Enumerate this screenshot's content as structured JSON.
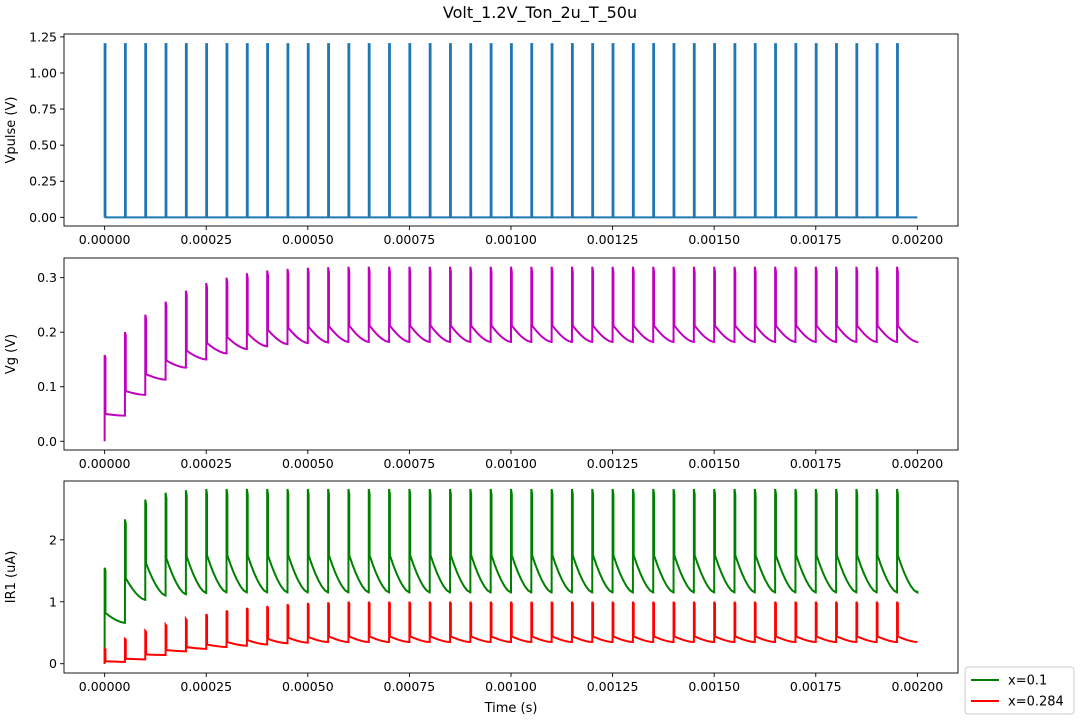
{
  "chart_data": {
    "type": "line",
    "title": "Volt_1.2V_Ton_2u_T_50u",
    "xlabel": "Time (s)",
    "x_tick_labels": [
      "0.00000",
      "0.00025",
      "0.00050",
      "0.00075",
      "0.00100",
      "0.00125",
      "0.00150",
      "0.00175",
      "0.00200"
    ],
    "x_ticks": [
      0,
      0.00025,
      0.0005,
      0.00075,
      0.001,
      0.00125,
      0.0015,
      0.00175,
      0.002
    ],
    "xlim": [
      -0.0001,
      0.0021
    ],
    "pulse": {
      "period": 5e-05,
      "ton": 2e-06,
      "count": 40,
      "t_end": 0.002
    },
    "panels": [
      {
        "ylabel": "Vpulse (V)",
        "ylim": [
          -0.06,
          1.27
        ],
        "y_ticks": [
          0,
          0.25,
          0.5,
          0.75,
          1.0,
          1.25
        ],
        "y_tick_labels": [
          "0.00",
          "0.25",
          "0.50",
          "0.75",
          "1.00",
          "1.25"
        ],
        "series": [
          {
            "key": "vpulse",
            "color": "#1f77b4",
            "amplitude": 1.2
          }
        ]
      },
      {
        "ylabel": "Vg (V)",
        "ylim": [
          -0.016,
          0.336
        ],
        "y_ticks": [
          0.0,
          0.1,
          0.2,
          0.3
        ],
        "y_tick_labels": [
          "0.0",
          "0.1",
          "0.2",
          "0.3"
        ],
        "series": [
          {
            "key": "vg",
            "color": "#bf00bf",
            "start_value": 0.0,
            "peaks": [
              0.158,
              0.2,
              0.232,
              0.256,
              0.276,
              0.29,
              0.3,
              0.308,
              0.313,
              0.316,
              0.318,
              0.319,
              0.32,
              0.32,
              0.32,
              0.32,
              0.32,
              0.32,
              0.32,
              0.32,
              0.32,
              0.32,
              0.32,
              0.32,
              0.32,
              0.32,
              0.32,
              0.32,
              0.32,
              0.32,
              0.32,
              0.32,
              0.32,
              0.32,
              0.32,
              0.32,
              0.32,
              0.32,
              0.32,
              0.32
            ],
            "after_drop": [
              0.05,
              0.092,
              0.123,
              0.148,
              0.166,
              0.18,
              0.191,
              0.198,
              0.204,
              0.208,
              0.21,
              0.211,
              0.212,
              0.212,
              0.212,
              0.212,
              0.212,
              0.212,
              0.212,
              0.212,
              0.212,
              0.212,
              0.212,
              0.212,
              0.212,
              0.212,
              0.212,
              0.212,
              0.212,
              0.212,
              0.212,
              0.212,
              0.212,
              0.212,
              0.212,
              0.212,
              0.212,
              0.212,
              0.212,
              0.212
            ],
            "decay_end": [
              0.047,
              0.085,
              0.113,
              0.135,
              0.15,
              0.161,
              0.169,
              0.174,
              0.178,
              0.18,
              0.181,
              0.182,
              0.182,
              0.182,
              0.182,
              0.182,
              0.182,
              0.182,
              0.182,
              0.182,
              0.182,
              0.182,
              0.182,
              0.182,
              0.182,
              0.182,
              0.182,
              0.182,
              0.182,
              0.182,
              0.182,
              0.182,
              0.182,
              0.182,
              0.182,
              0.182,
              0.182,
              0.182,
              0.182,
              0.182
            ],
            "final_value": 0.183
          }
        ]
      },
      {
        "ylabel": "IR1 (uA)",
        "ylim": [
          -0.15,
          2.95
        ],
        "y_ticks": [
          0,
          1,
          2
        ],
        "y_tick_labels": [
          "0",
          "1",
          "2"
        ],
        "series": [
          {
            "key": "x01",
            "name": "x=0.1",
            "color": "#008000",
            "start_value": 0.0,
            "peaks": [
              1.55,
              2.33,
              2.65,
              2.76,
              2.8,
              2.82,
              2.82,
              2.82,
              2.82,
              2.82,
              2.82,
              2.82,
              2.82,
              2.82,
              2.82,
              2.82,
              2.82,
              2.82,
              2.82,
              2.82,
              2.82,
              2.82,
              2.82,
              2.82,
              2.82,
              2.82,
              2.82,
              2.82,
              2.82,
              2.82,
              2.82,
              2.82,
              2.82,
              2.82,
              2.82,
              2.82,
              2.82,
              2.82,
              2.82,
              2.82
            ],
            "after_drop": [
              0.82,
              1.38,
              1.62,
              1.7,
              1.73,
              1.75,
              1.75,
              1.75,
              1.75,
              1.75,
              1.75,
              1.75,
              1.75,
              1.75,
              1.75,
              1.75,
              1.75,
              1.75,
              1.75,
              1.75,
              1.75,
              1.75,
              1.75,
              1.75,
              1.75,
              1.75,
              1.75,
              1.75,
              1.75,
              1.75,
              1.75,
              1.75,
              1.75,
              1.75,
              1.75,
              1.75,
              1.75,
              1.75,
              1.75,
              1.75
            ],
            "decay_end": [
              0.66,
              1.03,
              1.1,
              1.12,
              1.14,
              1.15,
              1.15,
              1.15,
              1.15,
              1.15,
              1.15,
              1.15,
              1.15,
              1.15,
              1.15,
              1.15,
              1.15,
              1.15,
              1.15,
              1.15,
              1.15,
              1.15,
              1.15,
              1.15,
              1.15,
              1.15,
              1.15,
              1.15,
              1.15,
              1.15,
              1.15,
              1.15,
              1.15,
              1.15,
              1.15,
              1.15,
              1.15,
              1.15,
              1.15,
              1.15
            ],
            "final_value": 1.18
          },
          {
            "key": "x0284",
            "name": "x=0.284",
            "color": "#ff0000",
            "start_value": 0.0,
            "peaks": [
              0.24,
              0.4,
              0.53,
              0.63,
              0.72,
              0.8,
              0.86,
              0.9,
              0.93,
              0.96,
              0.98,
              0.99,
              1.0,
              1.0,
              1.0,
              1.0,
              1.0,
              1.0,
              1.0,
              1.0,
              1.0,
              1.0,
              1.0,
              1.0,
              1.0,
              1.0,
              1.0,
              1.0,
              1.0,
              1.0,
              1.0,
              1.0,
              1.0,
              1.0,
              1.0,
              1.0,
              1.0,
              1.0,
              1.0,
              1.0
            ],
            "after_drop": [
              0.04,
              0.08,
              0.15,
              0.22,
              0.27,
              0.31,
              0.35,
              0.38,
              0.4,
              0.42,
              0.43,
              0.44,
              0.44,
              0.44,
              0.44,
              0.44,
              0.44,
              0.44,
              0.44,
              0.44,
              0.44,
              0.44,
              0.44,
              0.44,
              0.44,
              0.44,
              0.44,
              0.44,
              0.44,
              0.44,
              0.44,
              0.44,
              0.44,
              0.44,
              0.44,
              0.44,
              0.44,
              0.44,
              0.44,
              0.44
            ],
            "decay_end": [
              0.03,
              0.07,
              0.14,
              0.2,
              0.24,
              0.27,
              0.29,
              0.31,
              0.33,
              0.34,
              0.35,
              0.35,
              0.35,
              0.35,
              0.35,
              0.35,
              0.35,
              0.35,
              0.35,
              0.35,
              0.35,
              0.35,
              0.35,
              0.35,
              0.35,
              0.35,
              0.35,
              0.35,
              0.35,
              0.35,
              0.35,
              0.35,
              0.35,
              0.35,
              0.35,
              0.35,
              0.35,
              0.35,
              0.35,
              0.35
            ],
            "final_value": 0.35
          }
        ]
      }
    ],
    "legend": {
      "placement": "outside-bottom-right",
      "entries": [
        {
          "label": "x=0.1",
          "color": "#008000"
        },
        {
          "label": "x=0.284",
          "color": "#ff0000"
        }
      ]
    }
  }
}
